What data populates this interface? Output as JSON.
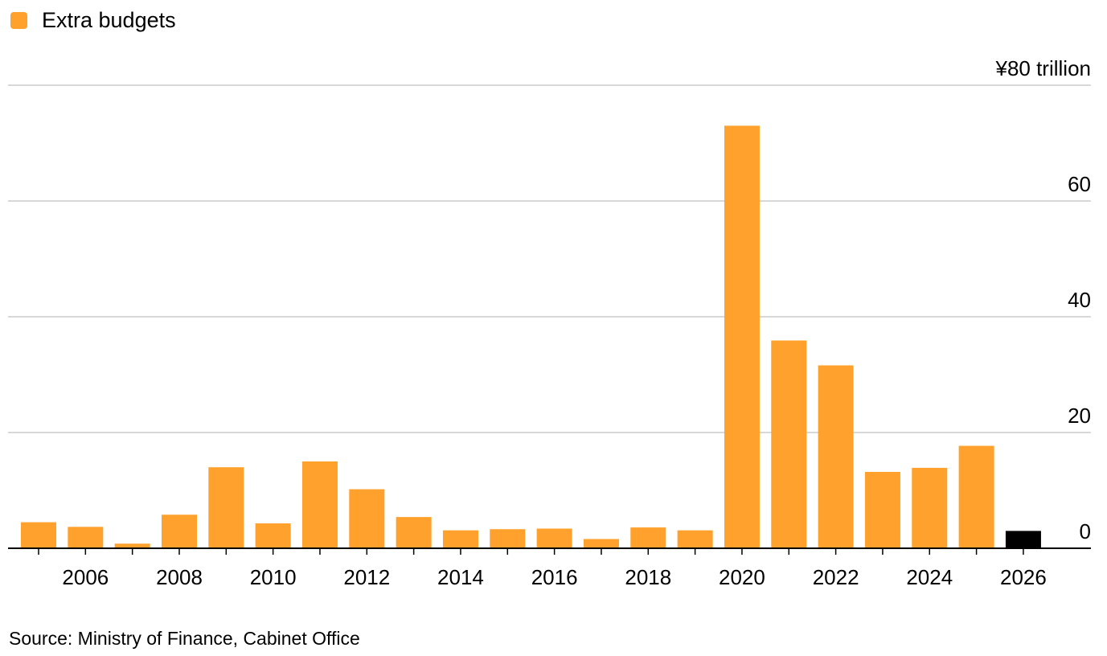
{
  "chart_data": {
    "type": "bar",
    "legend": [
      {
        "label": "Extra budgets",
        "color": "#ffa12c"
      }
    ],
    "x": [
      2005,
      2006,
      2007,
      2008,
      2009,
      2010,
      2011,
      2012,
      2013,
      2014,
      2015,
      2016,
      2017,
      2018,
      2019,
      2020,
      2021,
      2022,
      2023,
      2024,
      2025,
      2026
    ],
    "values": [
      4.5,
      3.7,
      0.8,
      5.8,
      14.0,
      4.3,
      15.0,
      10.2,
      5.4,
      3.1,
      3.3,
      3.4,
      1.6,
      3.6,
      3.1,
      73.0,
      35.9,
      31.6,
      13.2,
      13.9,
      17.7,
      3.0
    ],
    "colors": [
      "#ffa12c",
      "#ffa12c",
      "#ffa12c",
      "#ffa12c",
      "#ffa12c",
      "#ffa12c",
      "#ffa12c",
      "#ffa12c",
      "#ffa12c",
      "#ffa12c",
      "#ffa12c",
      "#ffa12c",
      "#ffa12c",
      "#ffa12c",
      "#ffa12c",
      "#ffa12c",
      "#ffa12c",
      "#ffa12c",
      "#ffa12c",
      "#ffa12c",
      "#ffa12c",
      "#000000"
    ],
    "x_tick_labels": [
      "2006",
      "2008",
      "2010",
      "2012",
      "2014",
      "2016",
      "2018",
      "2020",
      "2022",
      "2024",
      "2026"
    ],
    "y_ticks": [
      0,
      20,
      40,
      60,
      80
    ],
    "y_tick_labels": [
      "0",
      "20",
      "40",
      "60",
      "¥80 trillion"
    ],
    "ylim": [
      0,
      80
    ],
    "y_axis_side": "right",
    "grid": true,
    "legend_position": "top-left",
    "source": "Source: Ministry of Finance, Cabinet Office"
  }
}
